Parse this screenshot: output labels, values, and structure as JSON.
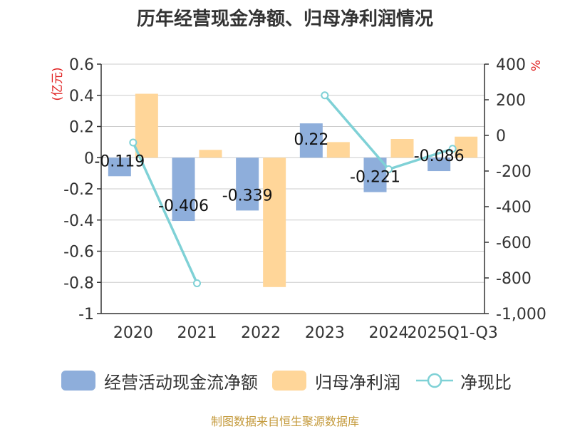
{
  "chart_data": {
    "type": "bar",
    "title": "历年经营现金净额、归母净利润情况",
    "categories": [
      "2020",
      "2021",
      "2022",
      "2023",
      "2024",
      "2025Q1-Q3"
    ],
    "left_unit": "(亿元)",
    "right_unit": "%",
    "left_ticks": [
      "0.6",
      "0.4",
      "0.2",
      "0",
      "-0.2",
      "-0.4",
      "-0.6",
      "-0.8",
      "-1"
    ],
    "right_ticks": [
      "400",
      "200",
      "0",
      "-200",
      "-400",
      "-600",
      "-800",
      "-1,000"
    ],
    "ylim_left": [
      -1,
      0.6
    ],
    "ylim_right": [
      -1000,
      400
    ],
    "series": [
      {
        "name": "经营活动现金流净额",
        "type": "bar",
        "color": "#8eaedb",
        "values": [
          -0.119,
          -0.406,
          -0.339,
          0.22,
          -0.221,
          -0.086
        ],
        "labels": [
          "-0.119",
          "-0.406",
          "-0.339",
          "0.22",
          "-0.221",
          "-0.086"
        ]
      },
      {
        "name": "归母净利润",
        "type": "bar",
        "color": "#ffd699",
        "values": [
          0.41,
          0.05,
          -0.83,
          0.1,
          0.12,
          0.135
        ]
      },
      {
        "name": "净现比",
        "type": "line",
        "color": "#7fd1d6",
        "values": [
          -40,
          -830,
          null,
          225,
          -190,
          -75
        ]
      }
    ]
  },
  "legend": [
    "经营活动现金流净额",
    "归母净利润",
    "净现比"
  ],
  "source": "制图数据来自恒生聚源数据库"
}
